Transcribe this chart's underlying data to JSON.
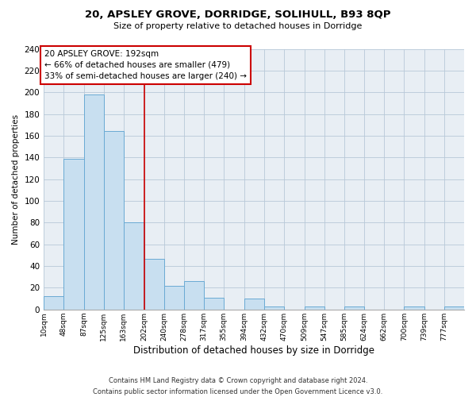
{
  "title": "20, APSLEY GROVE, DORRIDGE, SOLIHULL, B93 8QP",
  "subtitle": "Size of property relative to detached houses in Dorridge",
  "xlabel": "Distribution of detached houses by size in Dorridge",
  "ylabel": "Number of detached properties",
  "bin_labels": [
    "10sqm",
    "48sqm",
    "87sqm",
    "125sqm",
    "163sqm",
    "202sqm",
    "240sqm",
    "278sqm",
    "317sqm",
    "355sqm",
    "394sqm",
    "432sqm",
    "470sqm",
    "509sqm",
    "547sqm",
    "585sqm",
    "624sqm",
    "662sqm",
    "700sqm",
    "739sqm",
    "777sqm"
  ],
  "bar_heights": [
    12,
    139,
    198,
    164,
    80,
    47,
    22,
    26,
    11,
    0,
    10,
    3,
    0,
    3,
    0,
    3,
    0,
    0,
    3,
    0,
    3
  ],
  "bar_color": "#c8dff0",
  "bar_edgecolor": "#6aaad4",
  "property_label": "20 APSLEY GROVE: 192sqm",
  "annotation_line1": "← 66% of detached houses are smaller (479)",
  "annotation_line2": "33% of semi-detached houses are larger (240) →",
  "vline_color": "#cc0000",
  "vline_x_bin_index": 4,
  "bin_edges": [
    10,
    48,
    87,
    125,
    163,
    202,
    240,
    278,
    317,
    355,
    394,
    432,
    470,
    509,
    547,
    585,
    624,
    662,
    700,
    739,
    777,
    815
  ],
  "ylim": [
    0,
    240
  ],
  "yticks": [
    0,
    20,
    40,
    60,
    80,
    100,
    120,
    140,
    160,
    180,
    200,
    220,
    240
  ],
  "footer_line1": "Contains HM Land Registry data © Crown copyright and database right 2024.",
  "footer_line2": "Contains public sector information licensed under the Open Government Licence v3.0.",
  "box_color": "#ffffff",
  "box_edgecolor": "#cc0000",
  "background_color": "#e8eef4"
}
